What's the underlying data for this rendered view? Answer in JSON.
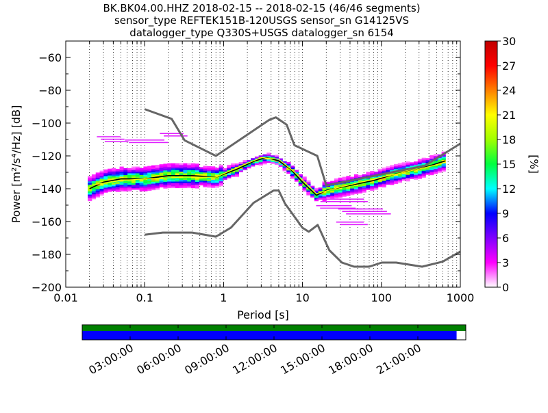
{
  "title_lines": [
    "BK.BK04.00.HHZ   2018-02-15 -- 2018-02-15  (46/46 segments)",
    "sensor_type REFTEK151B-120USGS sensor_sn G14125VS",
    "datalogger_type Q330S+USGS datalogger_sn 6154"
  ],
  "chart_data": {
    "type": "heatmap",
    "xlabel": "Period [s]",
    "ylabel": "Power [m²/s⁴/Hz] [dB]",
    "x_scale": "log",
    "xlim": [
      0.01,
      1000
    ],
    "ylim": [
      -200,
      -50
    ],
    "x_ticks": [
      0.01,
      0.1,
      1,
      10,
      100,
      1000
    ],
    "x_tick_labels": [
      "0.01",
      "0.1",
      "1",
      "10",
      "100",
      "1000"
    ],
    "y_ticks": [
      -200,
      -180,
      -160,
      -140,
      -120,
      -100,
      -80,
      -60
    ],
    "y_tick_labels": [
      "−200",
      "−180",
      "−160",
      "−140",
      "−120",
      "−100",
      "−80",
      "−60"
    ],
    "grid": "dotted vertical",
    "colorbar": {
      "label": "[%]",
      "range": [
        0,
        30
      ],
      "ticks": [
        "0",
        "3",
        "6",
        "9",
        "12",
        "15",
        "18",
        "21",
        "24",
        "27",
        "30"
      ],
      "colormap": [
        "#ffffff",
        "#ff00ff",
        "#8000ff",
        "#0000ff",
        "#00ffff",
        "#00ff40",
        "#a0ff00",
        "#ffff00",
        "#ff8000",
        "#ff0000",
        "#c00000"
      ]
    },
    "series": [
      {
        "role": "high noise model",
        "color": "#666666",
        "x": [
          0.1,
          0.22,
          0.32,
          0.8,
          3.8,
          4.6,
          6.3,
          7.9,
          15.4,
          20,
          354.8,
          1000
        ],
        "y": [
          -91.5,
          -97.4,
          -110.5,
          -120,
          -98,
          -96.5,
          -101,
          -113.5,
          -120,
          -138,
          -126,
          -112.5
        ]
      },
      {
        "role": "low noise model",
        "color": "#666666",
        "x": [
          0.1,
          0.17,
          0.4,
          0.8,
          1.24,
          2.4,
          4.3,
          5,
          6,
          10,
          12,
          15.6,
          21.9,
          31.6,
          45,
          70,
          101,
          154,
          328,
          600,
          1000
        ],
        "y": [
          -168,
          -166.7,
          -166.7,
          -169.2,
          -163.7,
          -148.6,
          -141.1,
          -141.1,
          -149,
          -163.8,
          -166.2,
          -162.1,
          -177.5,
          -185,
          -187.5,
          -187.5,
          -185,
          -185,
          -187.5,
          -184.4,
          -178.3
        ]
      },
      {
        "role": "mode",
        "color": "#000000",
        "x": [
          0.02,
          0.03,
          0.05,
          0.1,
          0.2,
          0.4,
          0.8,
          1.5,
          2.5,
          3.5,
          5,
          7,
          10,
          15,
          20,
          40,
          80,
          150,
          300,
          650
        ],
        "y": [
          -140,
          -136,
          -134,
          -134,
          -132,
          -132,
          -133,
          -128,
          -123,
          -121,
          -123,
          -128,
          -136,
          -144,
          -141,
          -138,
          -135,
          -131,
          -128,
          -123
        ]
      },
      {
        "role": "mean",
        "color": "#ffff00",
        "x": [
          0.02,
          0.05,
          0.1,
          0.3,
          0.8,
          1.5,
          3,
          5,
          8,
          15,
          30,
          100,
          300,
          650
        ],
        "y": [
          -138,
          -135,
          -134,
          -133,
          -133,
          -127,
          -121,
          -122,
          -130,
          -143,
          -139,
          -133,
          -128,
          -124
        ]
      }
    ]
  },
  "timeline": {
    "labels": [
      "03:00:00",
      "06:00:00",
      "09:00:00",
      "12:00:00",
      "15:00:00",
      "18:00:00",
      "21:00:00"
    ],
    "data_fraction": 0.976,
    "top_color": "#008000",
    "bottom_color": "#0000ff"
  }
}
